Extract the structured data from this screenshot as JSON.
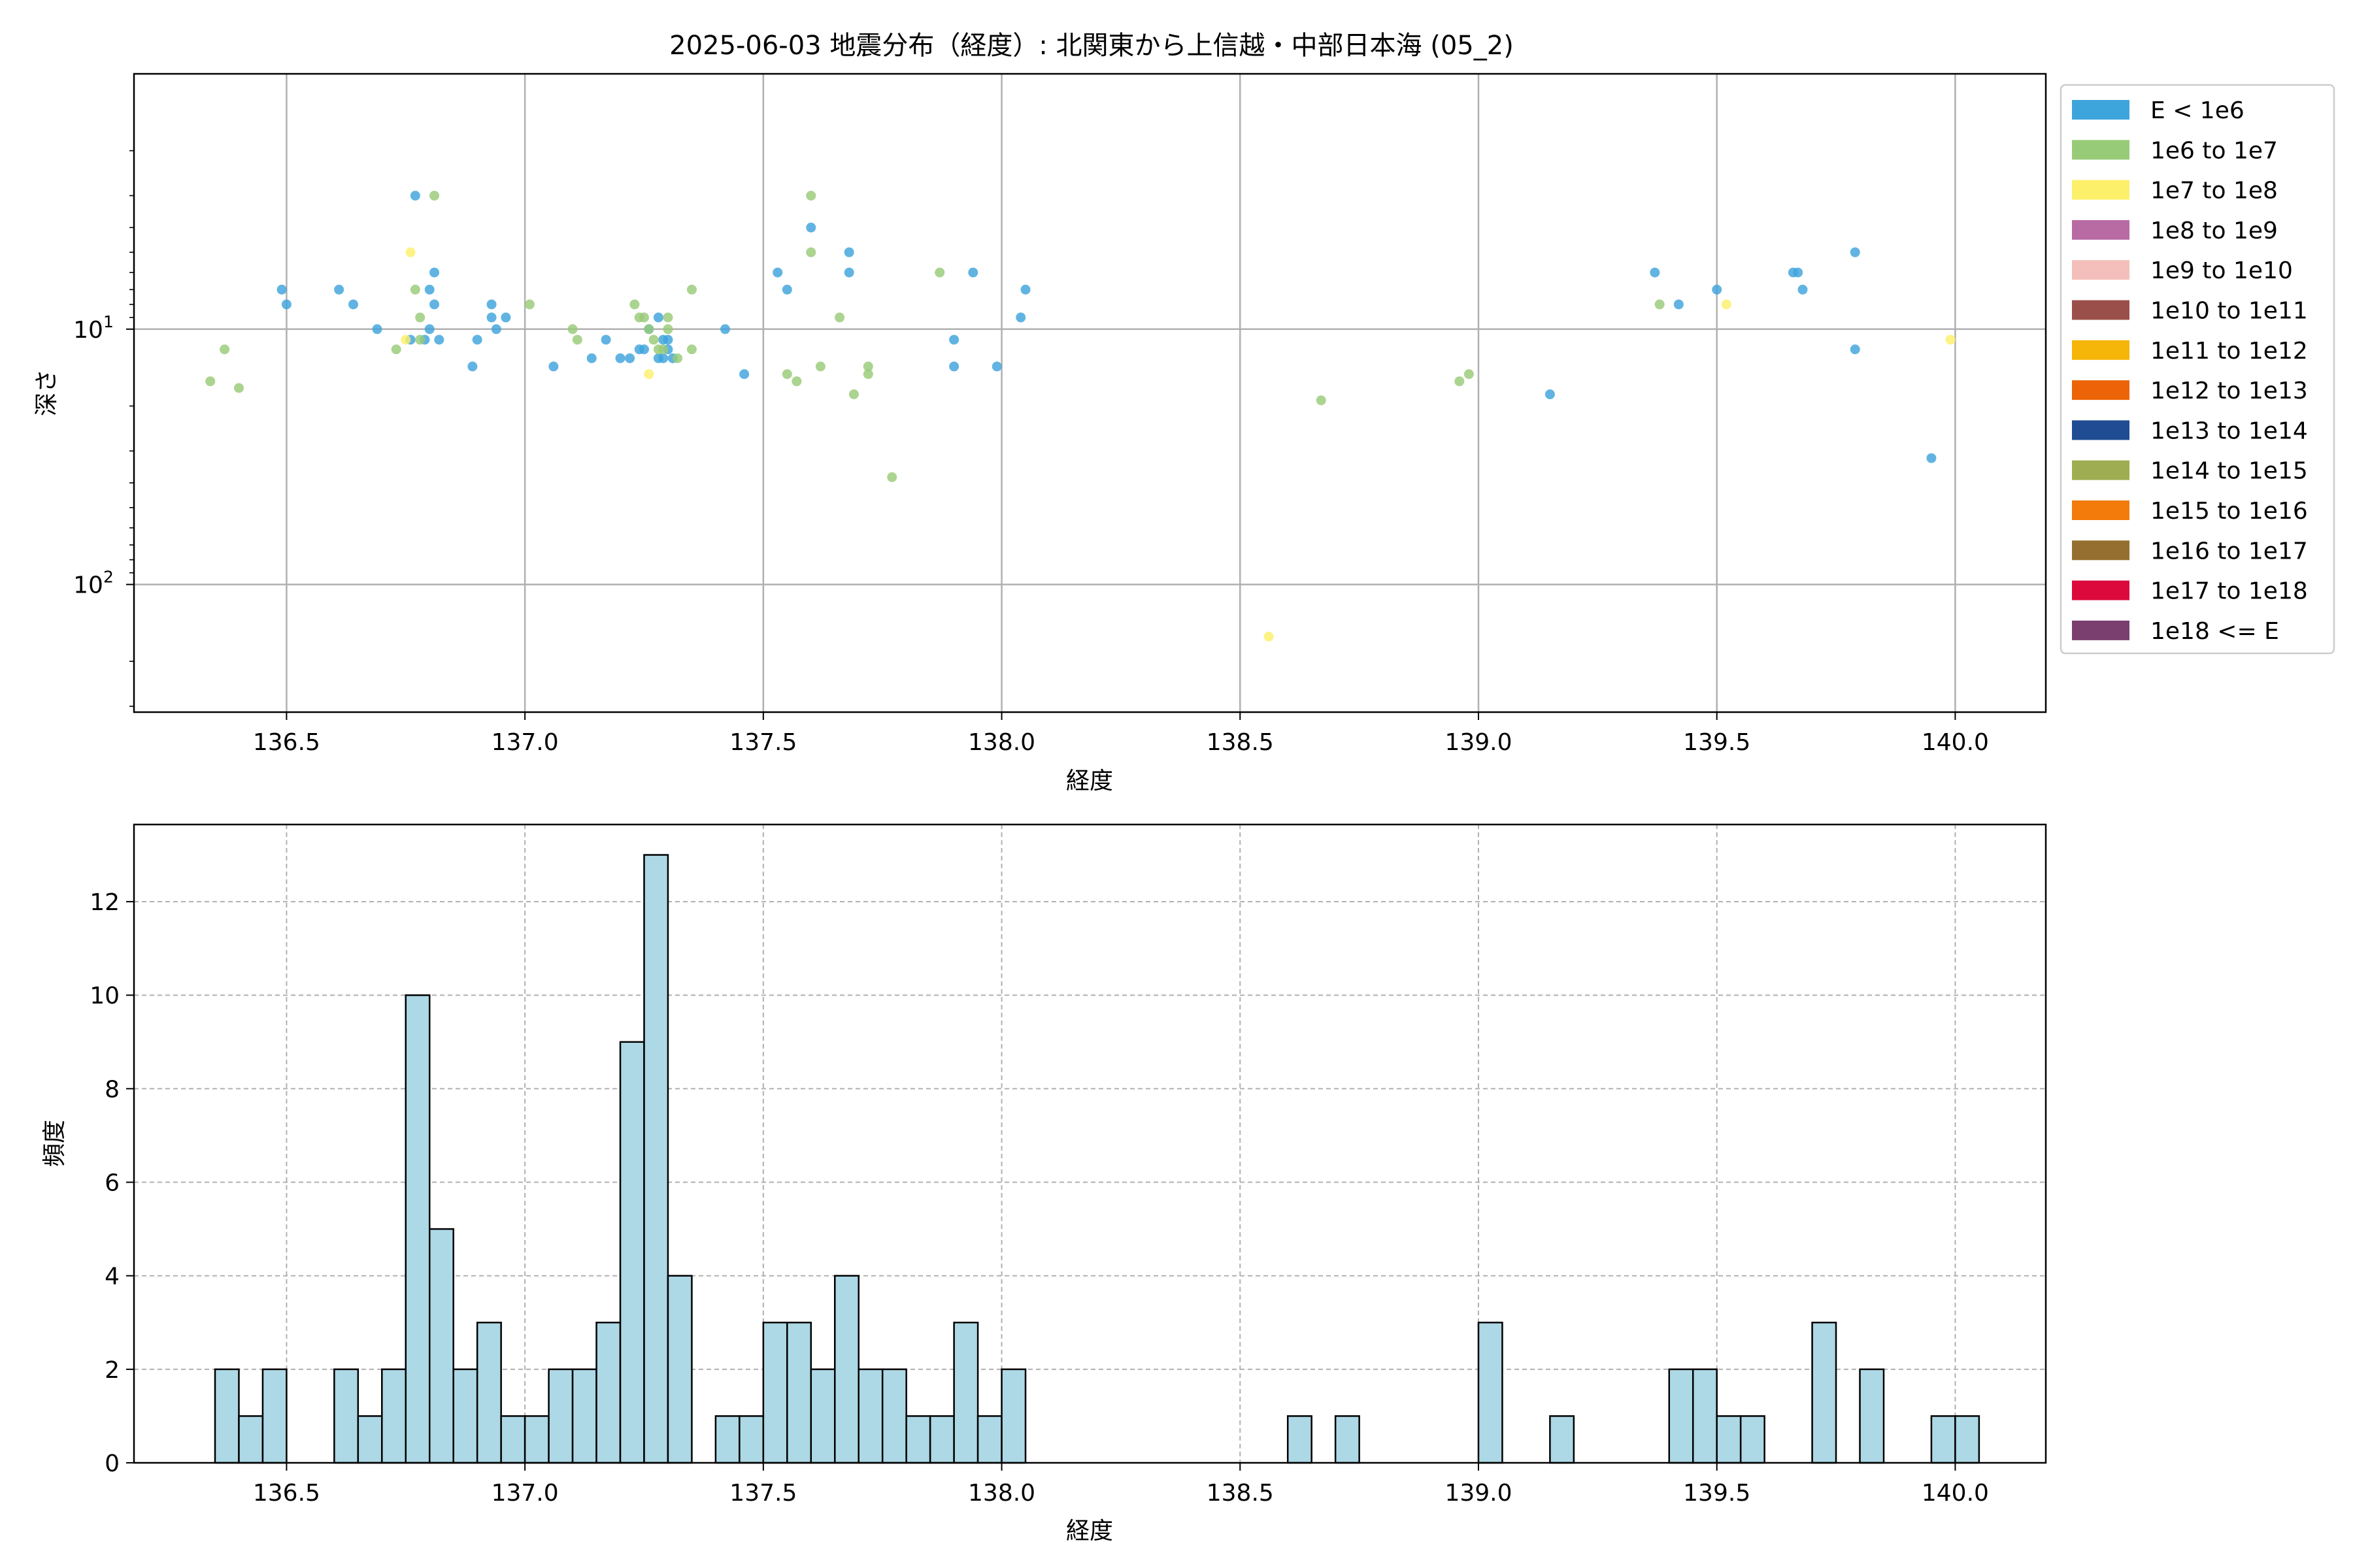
{
  "figure": {
    "title": "2025-06-03 地震分布（経度）: 北関東から上信越・中部日本海 (05_2)"
  },
  "chart_data": [
    {
      "type": "scatter",
      "xlabel": "経度",
      "ylabel": "深さ",
      "xlim": [
        136.18,
        140.19
      ],
      "ylim": [
        0.0,
        2.5
      ],
      "y_scale": "log",
      "y_inverted": true,
      "x_ticks": [
        "136.5",
        "137.0",
        "137.5",
        "138.0",
        "138.5",
        "139.0",
        "139.5",
        "140.0"
      ],
      "y_ticks": [
        {
          "base": "10",
          "exp": "1",
          "value": 10
        },
        {
          "base": "10",
          "exp": "2",
          "value": 100
        }
      ],
      "grid": true,
      "legend_position": "right",
      "legend": [
        {
          "label": "E < 1e6",
          "color": "#3ea4dc"
        },
        {
          "label": "1e6 to 1e7",
          "color": "#98cb78"
        },
        {
          "label": "1e7 to 1e8",
          "color": "#fcef6a"
        },
        {
          "label": "1e8 to 1e9",
          "color": "#b86aa3"
        },
        {
          "label": "1e9 to 1e10",
          "color": "#f4bfba"
        },
        {
          "label": "1e10 to 1e11",
          "color": "#9b4f4a"
        },
        {
          "label": "1e11 to 1e12",
          "color": "#f6b509"
        },
        {
          "label": "1e12 to 1e13",
          "color": "#ec6407"
        },
        {
          "label": "1e13 to 1e14",
          "color": "#1f4c93"
        },
        {
          "label": "1e14 to 1e15",
          "color": "#9ead51"
        },
        {
          "label": "1e15 to 1e16",
          "color": "#f27b0c"
        },
        {
          "label": "1e16 to 1e17",
          "color": "#956f30"
        },
        {
          "label": "1e17 to 1e18",
          "color": "#dc0a3c"
        },
        {
          "label": "1e18 <= E",
          "color": "#7a3e6f"
        }
      ],
      "series": [
        {
          "class": 0,
          "points": [
            [
              136.49,
              7
            ],
            [
              136.5,
              8
            ],
            [
              136.61,
              7
            ],
            [
              136.64,
              8
            ],
            [
              136.69,
              10
            ],
            [
              136.76,
              11
            ],
            [
              136.77,
              3
            ],
            [
              136.79,
              11
            ],
            [
              136.8,
              7
            ],
            [
              136.8,
              10
            ],
            [
              136.81,
              6
            ],
            [
              136.81,
              8
            ],
            [
              136.82,
              11
            ],
            [
              136.89,
              14
            ],
            [
              136.9,
              11
            ],
            [
              136.93,
              8
            ],
            [
              136.93,
              9
            ],
            [
              136.94,
              10
            ],
            [
              136.96,
              9
            ],
            [
              137.06,
              14
            ],
            [
              137.14,
              13
            ],
            [
              137.17,
              11
            ],
            [
              137.2,
              13
            ],
            [
              137.22,
              13
            ],
            [
              137.24,
              12
            ],
            [
              137.25,
              12
            ],
            [
              137.26,
              10
            ],
            [
              137.28,
              9
            ],
            [
              137.28,
              13
            ],
            [
              137.29,
              11
            ],
            [
              137.29,
              13
            ],
            [
              137.3,
              11
            ],
            [
              137.3,
              12
            ],
            [
              137.31,
              13
            ],
            [
              137.42,
              10
            ],
            [
              137.46,
              15
            ],
            [
              137.53,
              6
            ],
            [
              137.55,
              7
            ],
            [
              137.6,
              4
            ],
            [
              137.68,
              5
            ],
            [
              137.68,
              6
            ],
            [
              137.9,
              11
            ],
            [
              137.9,
              14
            ],
            [
              137.94,
              6
            ],
            [
              137.99,
              14
            ],
            [
              138.04,
              9
            ],
            [
              138.05,
              7
            ],
            [
              139.15,
              18
            ],
            [
              139.37,
              6
            ],
            [
              139.42,
              8
            ],
            [
              139.5,
              7
            ],
            [
              139.66,
              6
            ],
            [
              139.67,
              6
            ],
            [
              139.68,
              7
            ],
            [
              139.79,
              5
            ],
            [
              139.79,
              12
            ],
            [
              139.95,
              32
            ]
          ]
        },
        {
          "class": 1,
          "points": [
            [
              136.34,
              16
            ],
            [
              136.37,
              12
            ],
            [
              136.4,
              17
            ],
            [
              136.73,
              12
            ],
            [
              136.77,
              7
            ],
            [
              136.78,
              9
            ],
            [
              136.78,
              11
            ],
            [
              136.81,
              3
            ],
            [
              137.01,
              8
            ],
            [
              137.1,
              10
            ],
            [
              137.11,
              11
            ],
            [
              137.23,
              8
            ],
            [
              137.24,
              9
            ],
            [
              137.25,
              9
            ],
            [
              137.26,
              10
            ],
            [
              137.27,
              11
            ],
            [
              137.28,
              12
            ],
            [
              137.29,
              12
            ],
            [
              137.3,
              10
            ],
            [
              137.3,
              9
            ],
            [
              137.32,
              13
            ],
            [
              137.35,
              7
            ],
            [
              137.35,
              12
            ],
            [
              137.55,
              15
            ],
            [
              137.57,
              16
            ],
            [
              137.6,
              3
            ],
            [
              137.6,
              5
            ],
            [
              137.62,
              14
            ],
            [
              137.66,
              9
            ],
            [
              137.69,
              18
            ],
            [
              137.72,
              14
            ],
            [
              137.72,
              15
            ],
            [
              137.77,
              38
            ],
            [
              137.87,
              6
            ],
            [
              138.67,
              19
            ],
            [
              138.96,
              16
            ],
            [
              138.98,
              15
            ],
            [
              139.38,
              8
            ]
          ]
        },
        {
          "class": 2,
          "points": [
            [
              136.75,
              11
            ],
            [
              136.76,
              5
            ],
            [
              137.26,
              15
            ],
            [
              138.56,
              160
            ],
            [
              139.52,
              8
            ],
            [
              139.99,
              11
            ]
          ]
        }
      ]
    },
    {
      "type": "bar",
      "subtype": "histogram",
      "xlabel": "経度",
      "ylabel": "頻度",
      "xlim": [
        136.18,
        140.19
      ],
      "ylim": [
        0,
        13.65
      ],
      "x_ticks": [
        "136.5",
        "137.0",
        "137.5",
        "138.0",
        "138.5",
        "139.0",
        "139.5",
        "140.0"
      ],
      "y_ticks": [
        "0",
        "2",
        "4",
        "6",
        "8",
        "10",
        "12"
      ],
      "grid": true,
      "bar_color": "#add8e6",
      "bin_start": 136.35,
      "bin_width": 0.05,
      "counts": [
        2,
        1,
        2,
        0,
        0,
        2,
        1,
        2,
        10,
        5,
        2,
        3,
        1,
        1,
        2,
        2,
        3,
        9,
        13,
        4,
        0,
        1,
        1,
        3,
        3,
        2,
        4,
        2,
        2,
        1,
        1,
        3,
        1,
        2,
        0,
        0,
        0,
        0,
        0,
        0,
        0,
        0,
        0,
        0,
        0,
        1,
        0,
        1,
        0,
        0,
        0,
        0,
        0,
        3,
        0,
        0,
        1,
        0,
        0,
        0,
        0,
        2,
        2,
        1,
        1,
        0,
        0,
        3,
        0,
        2,
        0,
        0,
        1,
        1
      ]
    }
  ]
}
